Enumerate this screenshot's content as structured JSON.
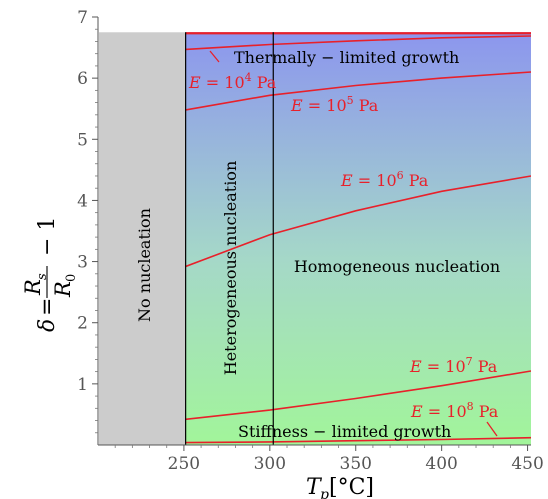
{
  "chart_data": {
    "type": "line",
    "xlabel": "T_p[°C]",
    "ylabel": "δ = R_s / R_0 − 1",
    "xlim": [
      200,
      452
    ],
    "ylim": [
      0,
      7
    ],
    "x_ticks": [
      "250",
      "300",
      "350",
      "400",
      "450"
    ],
    "y_ticks": [
      "1",
      "2",
      "3",
      "4",
      "5",
      "6",
      "7"
    ],
    "nucleation_boundary_x": 251,
    "homogeneous_boundary_x": 302,
    "regions": {
      "no_nucleation": "No nucleation",
      "heterogeneous": "Heterogeneous nucleation",
      "homogeneous": "Homogeneous nucleation",
      "thermal": "Thermally − limited growth",
      "stiffness": "Stiffness − limited growth"
    },
    "series": [
      {
        "label_base": "10",
        "label_exp": "4",
        "x": [
          251,
          300,
          350,
          400,
          452
        ],
        "y": [
          6.47,
          6.55,
          6.61,
          6.66,
          6.69
        ]
      },
      {
        "label_base": "10",
        "label_exp": "5",
        "x": [
          251,
          300,
          350,
          400,
          452
        ],
        "y": [
          5.48,
          5.72,
          5.88,
          6.0,
          6.1
        ]
      },
      {
        "label_base": "10",
        "label_exp": "6",
        "x": [
          251,
          300,
          350,
          400,
          452
        ],
        "y": [
          2.92,
          3.44,
          3.83,
          4.15,
          4.4
        ]
      },
      {
        "label_base": "10",
        "label_exp": "7",
        "x": [
          251,
          300,
          350,
          400,
          452
        ],
        "y": [
          0.42,
          0.57,
          0.76,
          0.97,
          1.21
        ]
      },
      {
        "label_base": "10",
        "label_exp": "8",
        "x": [
          251,
          300,
          350,
          400,
          452
        ],
        "y": [
          0.04,
          0.05,
          0.07,
          0.09,
          0.12
        ]
      }
    ],
    "colors": {
      "curve": "#e8202a",
      "no_nucleation_fill": "#cccccc",
      "gradient_top": "#8c96ee",
      "gradient_mid": "#a5d8c8",
      "gradient_bottom": "#a2f59a"
    }
  }
}
